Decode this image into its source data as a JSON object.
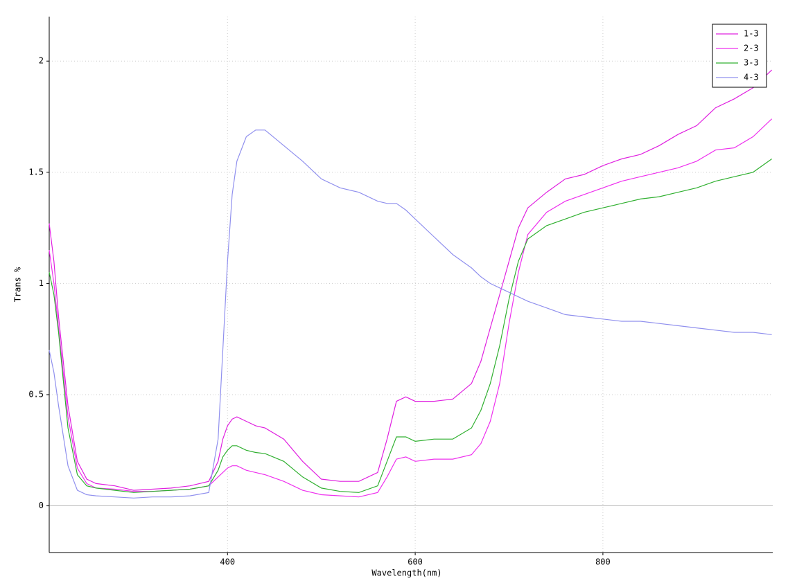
{
  "chart_data": {
    "type": "line",
    "x_label": "Wavelength(nm)",
    "y_label": "Trans %",
    "x": [
      210,
      215,
      220,
      230,
      240,
      250,
      260,
      280,
      300,
      320,
      340,
      360,
      380,
      390,
      395,
      400,
      405,
      410,
      420,
      430,
      440,
      460,
      480,
      500,
      520,
      540,
      560,
      570,
      580,
      590,
      600,
      620,
      640,
      660,
      670,
      680,
      690,
      700,
      710,
      720,
      740,
      760,
      780,
      800,
      820,
      840,
      860,
      880,
      900,
      920,
      940,
      960,
      980
    ],
    "series": [
      {
        "name": "1-3",
        "color": "#e020e0",
        "values": [
          1.27,
          1.1,
          0.85,
          0.45,
          0.2,
          0.12,
          0.1,
          0.09,
          0.07,
          0.075,
          0.08,
          0.09,
          0.11,
          0.2,
          0.3,
          0.36,
          0.39,
          0.4,
          0.38,
          0.36,
          0.35,
          0.3,
          0.2,
          0.12,
          0.11,
          0.11,
          0.15,
          0.3,
          0.47,
          0.49,
          0.47,
          0.47,
          0.48,
          0.55,
          0.65,
          0.8,
          0.95,
          1.1,
          1.25,
          1.34,
          1.41,
          1.47,
          1.49,
          1.53,
          1.56,
          1.58,
          1.62,
          1.67,
          1.71,
          1.79,
          1.83,
          1.88,
          1.96
        ]
      },
      {
        "name": "2-3",
        "color": "#ee30ee",
        "values": [
          1.15,
          1.0,
          0.8,
          0.4,
          0.17,
          0.1,
          0.08,
          0.075,
          0.065,
          0.065,
          0.07,
          0.075,
          0.09,
          0.13,
          0.15,
          0.17,
          0.18,
          0.18,
          0.16,
          0.15,
          0.14,
          0.11,
          0.07,
          0.05,
          0.045,
          0.04,
          0.06,
          0.13,
          0.21,
          0.22,
          0.2,
          0.21,
          0.21,
          0.23,
          0.28,
          0.38,
          0.55,
          0.82,
          1.05,
          1.22,
          1.32,
          1.37,
          1.4,
          1.43,
          1.46,
          1.48,
          1.5,
          1.52,
          1.55,
          1.6,
          1.61,
          1.66,
          1.74
        ]
      },
      {
        "name": "3-3",
        "color": "#30b030",
        "values": [
          1.05,
          0.95,
          0.78,
          0.35,
          0.14,
          0.09,
          0.08,
          0.07,
          0.06,
          0.065,
          0.07,
          0.075,
          0.09,
          0.16,
          0.22,
          0.25,
          0.27,
          0.27,
          0.25,
          0.24,
          0.235,
          0.2,
          0.13,
          0.08,
          0.065,
          0.06,
          0.09,
          0.2,
          0.31,
          0.31,
          0.29,
          0.3,
          0.3,
          0.35,
          0.43,
          0.55,
          0.72,
          0.93,
          1.1,
          1.2,
          1.26,
          1.29,
          1.32,
          1.34,
          1.36,
          1.38,
          1.39,
          1.41,
          1.43,
          1.46,
          1.48,
          1.5,
          1.56
        ]
      },
      {
        "name": "4-3",
        "color": "#9090ee",
        "values": [
          0.7,
          0.6,
          0.45,
          0.18,
          0.07,
          0.05,
          0.045,
          0.04,
          0.035,
          0.04,
          0.04,
          0.045,
          0.06,
          0.3,
          0.7,
          1.1,
          1.4,
          1.55,
          1.66,
          1.69,
          1.69,
          1.62,
          1.55,
          1.47,
          1.43,
          1.41,
          1.37,
          1.36,
          1.36,
          1.33,
          1.29,
          1.21,
          1.13,
          1.07,
          1.03,
          1.0,
          0.98,
          0.96,
          0.94,
          0.92,
          0.89,
          0.86,
          0.85,
          0.84,
          0.83,
          0.83,
          0.82,
          0.81,
          0.8,
          0.79,
          0.78,
          0.78,
          0.77
        ]
      }
    ],
    "xlim": [
      210,
      981
    ],
    "xticks": [
      400,
      600,
      800
    ],
    "ylim": [
      -0.21,
      2.2
    ],
    "yticks": [
      0,
      0.5,
      1,
      1.5,
      2
    ],
    "grid": true,
    "legend": "top-right"
  }
}
